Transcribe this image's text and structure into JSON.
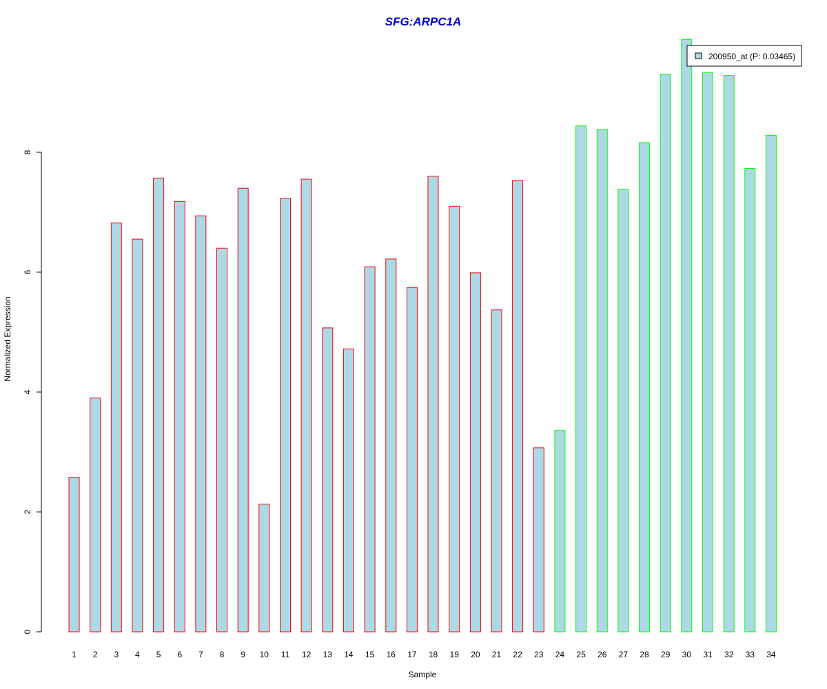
{
  "chart_data": {
    "type": "bar",
    "title": "SFG:ARPC1A",
    "xlabel": "Sample",
    "ylabel": "Normalized Expression",
    "ylim": [
      0,
      10
    ],
    "yticks": [
      0,
      2,
      4,
      6,
      8
    ],
    "grid": false,
    "legend_position": "top-right",
    "categories": [
      "1",
      "2",
      "3",
      "4",
      "5",
      "6",
      "7",
      "8",
      "9",
      "10",
      "11",
      "12",
      "13",
      "14",
      "15",
      "16",
      "17",
      "18",
      "19",
      "20",
      "21",
      "22",
      "23",
      "24",
      "25",
      "26",
      "27",
      "28",
      "29",
      "30",
      "31",
      "32",
      "33",
      "34"
    ],
    "series": [
      {
        "name": "200950_at (P: 0.03465)",
        "values": [
          2.58,
          3.9,
          6.82,
          6.55,
          7.57,
          7.18,
          6.94,
          6.4,
          7.4,
          2.13,
          7.23,
          7.55,
          5.07,
          4.72,
          6.09,
          6.22,
          5.74,
          7.6,
          7.1,
          5.99,
          5.37,
          7.53,
          3.07,
          3.36,
          8.44,
          8.38,
          7.38,
          8.16,
          9.3,
          9.88,
          9.33,
          9.28,
          7.73,
          8.28
        ],
        "groups": [
          1,
          1,
          1,
          1,
          1,
          1,
          1,
          1,
          1,
          1,
          1,
          1,
          1,
          1,
          1,
          1,
          1,
          1,
          1,
          1,
          1,
          1,
          1,
          2,
          2,
          2,
          2,
          2,
          2,
          2,
          2,
          2,
          2,
          2
        ]
      }
    ],
    "colors": {
      "bar_fill": "#add8e6",
      "group_1_border": "#ff0000",
      "group_2_border": "#00ff00",
      "title": "#0000cd",
      "axis": "#000000"
    }
  }
}
